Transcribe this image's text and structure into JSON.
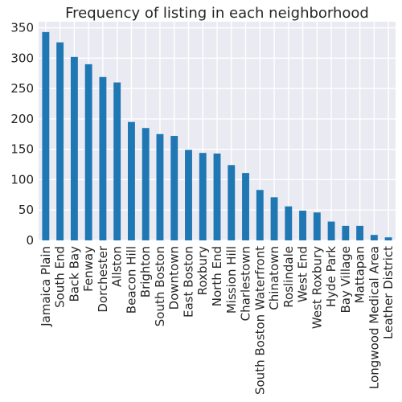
{
  "chart_data": {
    "type": "bar",
    "title": "Frequency of listing in each neighborhood",
    "xlabel": "",
    "ylabel": "",
    "categories": [
      "Jamaica Plain",
      "South End",
      "Back Bay",
      "Fenway",
      "Dorchester",
      "Allston",
      "Beacon Hill",
      "Brighton",
      "South Boston",
      "Downtown",
      "East Boston",
      "Roxbury",
      "North End",
      "Mission Hill",
      "Charlestown",
      "South Boston Waterfront",
      "Chinatown",
      "Roslindale",
      "West End",
      "West Roxbury",
      "Hyde Park",
      "Bay Village",
      "Mattapan",
      "Longwood Medical Area",
      "Leather District"
    ],
    "values": [
      343,
      326,
      302,
      290,
      269,
      260,
      195,
      185,
      175,
      172,
      149,
      144,
      143,
      124,
      111,
      83,
      71,
      56,
      49,
      46,
      31,
      24,
      24,
      9,
      5
    ],
    "ylim": [
      0,
      360
    ],
    "yticks": [
      0,
      50,
      100,
      150,
      200,
      250,
      300,
      350
    ],
    "grid": true,
    "legend": "none",
    "colors": {
      "bar": "#1f77b4",
      "plot_background": "#eaeaf2",
      "grid": "#ffffff",
      "text": "#262626"
    }
  }
}
